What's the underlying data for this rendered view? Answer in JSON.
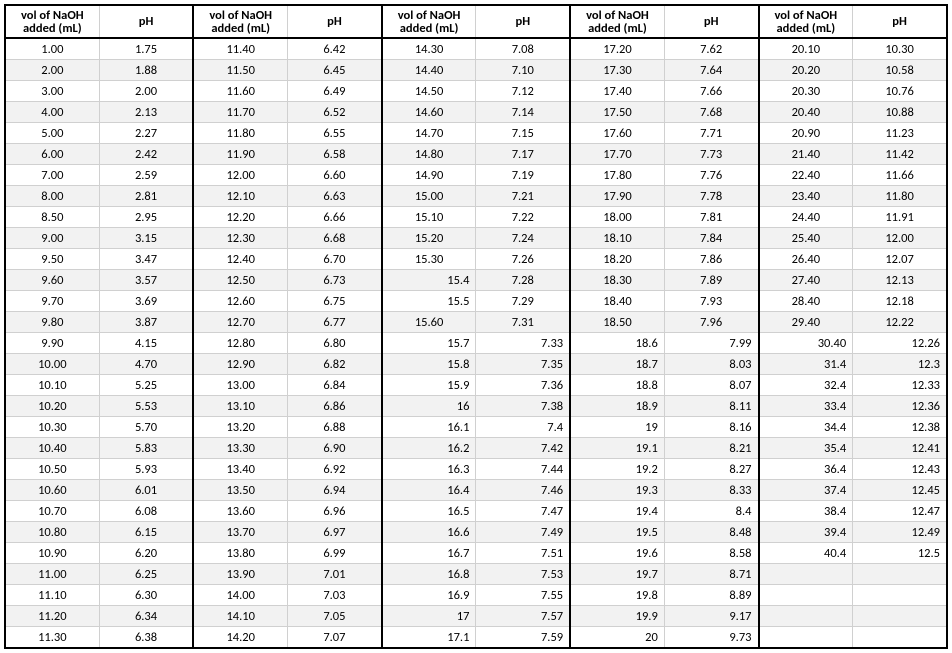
{
  "table": {
    "header_vol": "vol of NaOH added (mL)",
    "header_ph": "pH",
    "background_color": "#ffffff",
    "stripe_color": "#f2f2f2",
    "border_color": "#000000",
    "grid_color": "#d0d0d0",
    "font_family": "Calibri",
    "font_size_pt": 9,
    "header_font_weight": 700,
    "columns": [
      {
        "key": "v1",
        "label": "vol of NaOH added (mL)",
        "align": "center"
      },
      {
        "key": "p1",
        "label": "pH",
        "align": "center"
      },
      {
        "key": "v2",
        "label": "vol of NaOH added (mL)",
        "align": "center"
      },
      {
        "key": "p2",
        "label": "pH",
        "align": "center"
      },
      {
        "key": "v3",
        "label": "vol of NaOH added (mL)",
        "align": "center"
      },
      {
        "key": "p3",
        "label": "pH",
        "align": "center"
      },
      {
        "key": "v4",
        "label": "vol of NaOH added (mL)",
        "align": "center"
      },
      {
        "key": "p4",
        "label": "pH",
        "align": "center"
      },
      {
        "key": "v5",
        "label": "vol of NaOH added (mL)",
        "align": "center"
      },
      {
        "key": "p5",
        "label": "pH",
        "align": "center"
      }
    ],
    "rows": [
      {
        "v1": "1.00",
        "p1": "1.75",
        "v2": "11.40",
        "p2": "6.42",
        "v3": "14.30",
        "p3": "7.08",
        "v4": "17.20",
        "p4": "7.62",
        "v5": "20.10",
        "p5": "10.30"
      },
      {
        "v1": "2.00",
        "p1": "1.88",
        "v2": "11.50",
        "p2": "6.45",
        "v3": "14.40",
        "p3": "7.10",
        "v4": "17.30",
        "p4": "7.64",
        "v5": "20.20",
        "p5": "10.58"
      },
      {
        "v1": "3.00",
        "p1": "2.00",
        "v2": "11.60",
        "p2": "6.49",
        "v3": "14.50",
        "p3": "7.12",
        "v4": "17.40",
        "p4": "7.66",
        "v5": "20.30",
        "p5": "10.76"
      },
      {
        "v1": "4.00",
        "p1": "2.13",
        "v2": "11.70",
        "p2": "6.52",
        "v3": "14.60",
        "p3": "7.14",
        "v4": "17.50",
        "p4": "7.68",
        "v5": "20.40",
        "p5": "10.88"
      },
      {
        "v1": "5.00",
        "p1": "2.27",
        "v2": "11.80",
        "p2": "6.55",
        "v3": "14.70",
        "p3": "7.15",
        "v4": "17.60",
        "p4": "7.71",
        "v5": "20.90",
        "p5": "11.23"
      },
      {
        "v1": "6.00",
        "p1": "2.42",
        "v2": "11.90",
        "p2": "6.58",
        "v3": "14.80",
        "p3": "7.17",
        "v4": "17.70",
        "p4": "7.73",
        "v5": "21.40",
        "p5": "11.42"
      },
      {
        "v1": "7.00",
        "p1": "2.59",
        "v2": "12.00",
        "p2": "6.60",
        "v3": "14.90",
        "p3": "7.19",
        "v4": "17.80",
        "p4": "7.76",
        "v5": "22.40",
        "p5": "11.66"
      },
      {
        "v1": "8.00",
        "p1": "2.81",
        "v2": "12.10",
        "p2": "6.63",
        "v3": "15.00",
        "p3": "7.21",
        "v4": "17.90",
        "p4": "7.78",
        "v5": "23.40",
        "p5": "11.80"
      },
      {
        "v1": "8.50",
        "p1": "2.95",
        "v2": "12.20",
        "p2": "6.66",
        "v3": "15.10",
        "p3": "7.22",
        "v4": "18.00",
        "p4": "7.81",
        "v5": "24.40",
        "p5": "11.91"
      },
      {
        "v1": "9.00",
        "p1": "3.15",
        "v2": "12.30",
        "p2": "6.68",
        "v3": "15.20",
        "p3": "7.24",
        "v4": "18.10",
        "p4": "7.84",
        "v5": "25.40",
        "p5": "12.00"
      },
      {
        "v1": "9.50",
        "p1": "3.47",
        "v2": "12.40",
        "p2": "6.70",
        "v3": "15.30",
        "p3": "7.26",
        "v4": "18.20",
        "p4": "7.86",
        "v5": "26.40",
        "p5": "12.07"
      },
      {
        "v1": "9.60",
        "p1": "3.57",
        "v2": "12.50",
        "p2": "6.73",
        "v3": "15.4",
        "p3": "7.28",
        "v4": "18.30",
        "p4": "7.89",
        "v5": "27.40",
        "p5": "12.13",
        "v3_ra": true
      },
      {
        "v1": "9.70",
        "p1": "3.69",
        "v2": "12.60",
        "p2": "6.75",
        "v3": "15.5",
        "p3": "7.29",
        "v4": "18.40",
        "p4": "7.93",
        "v5": "28.40",
        "p5": "12.18",
        "v3_ra": true
      },
      {
        "v1": "9.80",
        "p1": "3.87",
        "v2": "12.70",
        "p2": "6.77",
        "v3": "15.60",
        "p3": "7.31",
        "v4": "18.50",
        "p4": "7.96",
        "v5": "29.40",
        "p5": "12.22"
      },
      {
        "v1": "9.90",
        "p1": "4.15",
        "v2": "12.80",
        "p2": "6.80",
        "v3": "15.7",
        "p3": "7.33",
        "v4": "18.6",
        "p4": "7.99",
        "v5": "30.40",
        "p5": "12.26",
        "ra": true
      },
      {
        "v1": "10.00",
        "p1": "4.70",
        "v2": "12.90",
        "p2": "6.82",
        "v3": "15.8",
        "p3": "7.35",
        "v4": "18.7",
        "p4": "8.03",
        "v5": "31.4",
        "p5": "12.3",
        "ra": true
      },
      {
        "v1": "10.10",
        "p1": "5.25",
        "v2": "13.00",
        "p2": "6.84",
        "v3": "15.9",
        "p3": "7.36",
        "v4": "18.8",
        "p4": "8.07",
        "v5": "32.4",
        "p5": "12.33",
        "ra": true
      },
      {
        "v1": "10.20",
        "p1": "5.53",
        "v2": "13.10",
        "p2": "6.86",
        "v3": "16",
        "p3": "7.38",
        "v4": "18.9",
        "p4": "8.11",
        "v5": "33.4",
        "p5": "12.36",
        "ra": true
      },
      {
        "v1": "10.30",
        "p1": "5.70",
        "v2": "13.20",
        "p2": "6.88",
        "v3": "16.1",
        "p3": "7.4",
        "v4": "19",
        "p4": "8.16",
        "v5": "34.4",
        "p5": "12.38",
        "ra": true
      },
      {
        "v1": "10.40",
        "p1": "5.83",
        "v2": "13.30",
        "p2": "6.90",
        "v3": "16.2",
        "p3": "7.42",
        "v4": "19.1",
        "p4": "8.21",
        "v5": "35.4",
        "p5": "12.41",
        "ra": true
      },
      {
        "v1": "10.50",
        "p1": "5.93",
        "v2": "13.40",
        "p2": "6.92",
        "v3": "16.3",
        "p3": "7.44",
        "v4": "19.2",
        "p4": "8.27",
        "v5": "36.4",
        "p5": "12.43",
        "ra": true
      },
      {
        "v1": "10.60",
        "p1": "6.01",
        "v2": "13.50",
        "p2": "6.94",
        "v3": "16.4",
        "p3": "7.46",
        "v4": "19.3",
        "p4": "8.33",
        "v5": "37.4",
        "p5": "12.45",
        "ra": true
      },
      {
        "v1": "10.70",
        "p1": "6.08",
        "v2": "13.60",
        "p2": "6.96",
        "v3": "16.5",
        "p3": "7.47",
        "v4": "19.4",
        "p4": "8.4",
        "v5": "38.4",
        "p5": "12.47",
        "ra": true
      },
      {
        "v1": "10.80",
        "p1": "6.15",
        "v2": "13.70",
        "p2": "6.97",
        "v3": "16.6",
        "p3": "7.49",
        "v4": "19.5",
        "p4": "8.48",
        "v5": "39.4",
        "p5": "12.49",
        "ra": true
      },
      {
        "v1": "10.90",
        "p1": "6.20",
        "v2": "13.80",
        "p2": "6.99",
        "v3": "16.7",
        "p3": "7.51",
        "v4": "19.6",
        "p4": "8.58",
        "v5": "40.4",
        "p5": "12.5",
        "ra": true
      },
      {
        "v1": "11.00",
        "p1": "6.25",
        "v2": "13.90",
        "p2": "7.01",
        "v3": "16.8",
        "p3": "7.53",
        "v4": "19.7",
        "p4": "8.71",
        "v5": "",
        "p5": "",
        "ra": true
      },
      {
        "v1": "11.10",
        "p1": "6.30",
        "v2": "14.00",
        "p2": "7.03",
        "v3": "16.9",
        "p3": "7.55",
        "v4": "19.8",
        "p4": "8.89",
        "v5": "",
        "p5": "",
        "ra": true
      },
      {
        "v1": "11.20",
        "p1": "6.34",
        "v2": "14.10",
        "p2": "7.05",
        "v3": "17",
        "p3": "7.57",
        "v4": "19.9",
        "p4": "9.17",
        "v5": "",
        "p5": "",
        "ra": true
      },
      {
        "v1": "11.30",
        "p1": "6.38",
        "v2": "14.20",
        "p2": "7.07",
        "v3": "17.1",
        "p3": "7.59",
        "v4": "20",
        "p4": "9.73",
        "v5": "",
        "p5": "",
        "ra": true
      }
    ]
  }
}
